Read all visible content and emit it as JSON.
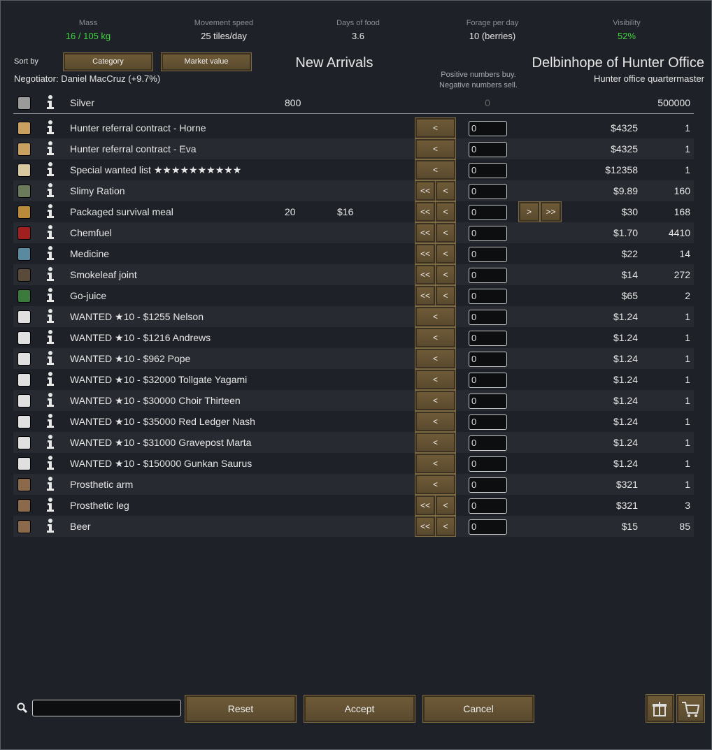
{
  "stats": [
    {
      "label": "Mass",
      "value": "16 / 105 kg"
    },
    {
      "label": "Movement speed",
      "value": "25 tiles/day"
    },
    {
      "label": "Days of food",
      "value": "3.6"
    },
    {
      "label": "Forage per day",
      "value": "10 (berries)"
    },
    {
      "label": "Visibility",
      "value": "52%"
    }
  ],
  "sort_by": "Sort by",
  "sort_buttons": [
    "Category",
    "Market value"
  ],
  "colony_title": "New Arrivals",
  "negotiator": "Negotiator: Daniel MacCruz (+9.7%)",
  "hint": [
    "Positive numbers buy.",
    "Negative numbers sell."
  ],
  "trader_title": "Delbinhope of Hunter Office",
  "trader_subtitle": "Hunter office quartermaster",
  "currency": {
    "name": "Silver",
    "colony_count": 800,
    "amount": 0,
    "trader_count": 500000
  },
  "rows": [
    {
      "name": "Hunter referral contract - Horne",
      "buttons_left": [
        "<"
      ],
      "amount": 0,
      "trader_price": "$4325",
      "trader_count": 1
    },
    {
      "name": "Hunter referral contract - Eva",
      "buttons_left": [
        "<"
      ],
      "amount": 0,
      "trader_price": "$4325",
      "trader_count": 1
    },
    {
      "name": "Special wanted list ★★★★★★★★★★",
      "buttons_left": [
        "<"
      ],
      "amount": 0,
      "trader_price": "$12358",
      "trader_count": 1
    },
    {
      "name": "Slimy Ration",
      "buttons_left": [
        "<<",
        "<"
      ],
      "amount": 0,
      "trader_price": "$9.89",
      "trader_count": 160
    },
    {
      "name": "Packaged survival meal",
      "colony_count": 20,
      "colony_price": "$16",
      "buttons_left": [
        "<<",
        "<"
      ],
      "amount": 0,
      "buttons_right": [
        ">",
        ">>"
      ],
      "trader_price": "$30",
      "trader_count": 168
    },
    {
      "name": "Chemfuel",
      "buttons_left": [
        "<<",
        "<"
      ],
      "amount": 0,
      "trader_price": "$1.70",
      "trader_count": 4410
    },
    {
      "name": "Medicine",
      "buttons_left": [
        "<<",
        "<"
      ],
      "amount": 0,
      "trader_price": "$22",
      "trader_count": 14
    },
    {
      "name": "Smokeleaf joint",
      "buttons_left": [
        "<<",
        "<"
      ],
      "amount": 0,
      "trader_price": "$14",
      "trader_count": 272
    },
    {
      "name": "Go-juice",
      "buttons_left": [
        "<<",
        "<"
      ],
      "amount": 0,
      "trader_price": "$65",
      "trader_count": 2
    },
    {
      "name": "WANTED ★10 - $1255 Nelson",
      "buttons_left": [
        "<"
      ],
      "amount": 0,
      "trader_price": "$1.24",
      "trader_count": 1
    },
    {
      "name": "WANTED ★10 - $1216 Andrews",
      "buttons_left": [
        "<"
      ],
      "amount": 0,
      "trader_price": "$1.24",
      "trader_count": 1
    },
    {
      "name": "WANTED ★10 - $962 Pope",
      "buttons_left": [
        "<"
      ],
      "amount": 0,
      "trader_price": "$1.24",
      "trader_count": 1
    },
    {
      "name": "WANTED ★10 - $32000 Tollgate Yagami",
      "buttons_left": [
        "<"
      ],
      "amount": 0,
      "trader_price": "$1.24",
      "trader_count": 1
    },
    {
      "name": "WANTED ★10 - $30000 Choir Thirteen",
      "buttons_left": [
        "<"
      ],
      "amount": 0,
      "trader_price": "$1.24",
      "trader_count": 1
    },
    {
      "name": "WANTED ★10 - $35000 Red Ledger Nash",
      "buttons_left": [
        "<"
      ],
      "amount": 0,
      "trader_price": "$1.24",
      "trader_count": 1
    },
    {
      "name": "WANTED ★10 - $31000 Gravepost Marta",
      "buttons_left": [
        "<"
      ],
      "amount": 0,
      "trader_price": "$1.24",
      "trader_count": 1
    },
    {
      "name": "WANTED ★10 - $150000 Gunkan Saurus",
      "buttons_left": [
        "<"
      ],
      "amount": 0,
      "trader_price": "$1.24",
      "trader_count": 1
    },
    {
      "name": "Prosthetic arm",
      "buttons_left": [
        "<"
      ],
      "amount": 0,
      "trader_price": "$321",
      "trader_count": 1
    },
    {
      "name": "Prosthetic leg",
      "buttons_left": [
        "<<",
        "<"
      ],
      "amount": 0,
      "trader_price": "$321",
      "trader_count": 3
    },
    {
      "name": "Beer",
      "buttons_left": [
        "<<",
        "<"
      ],
      "amount": 0,
      "trader_price": "$15",
      "trader_count": 85
    }
  ],
  "footer_buttons": [
    "Reset",
    "Accept",
    "Cancel"
  ]
}
